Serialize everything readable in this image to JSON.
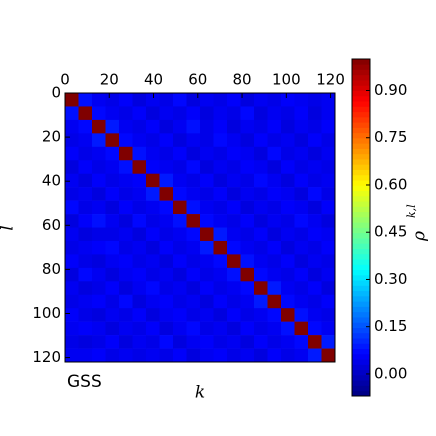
{
  "chart_data": {
    "type": "heatmap",
    "annotation": "GSS",
    "x_label": "k",
    "y_label": "l",
    "colorbar_label": {
      "base": "ρ",
      "superscript": "k,l"
    },
    "xlim": [
      0,
      122
    ],
    "ylim": [
      0,
      122
    ],
    "xticks": [
      0,
      20,
      40,
      60,
      80,
      100,
      120
    ],
    "yticks": [
      0,
      20,
      40,
      60,
      80,
      100,
      120
    ],
    "clim": [
      -0.07,
      1.0
    ],
    "colormap": "jet",
    "cticks": [
      {
        "value": 0.0,
        "label": "0.00"
      },
      {
        "value": 0.15,
        "label": "0.15"
      },
      {
        "value": 0.3,
        "label": "0.30"
      },
      {
        "value": 0.45,
        "label": "0.45"
      },
      {
        "value": 0.6,
        "label": "0.60"
      },
      {
        "value": 0.75,
        "label": "0.75"
      },
      {
        "value": 0.9,
        "label": "0.90"
      }
    ],
    "z": [
      [
        1.0,
        0.08,
        0.05,
        0.04,
        0.06,
        0.03,
        0.05,
        0.04,
        0.07,
        0.03,
        0.05,
        0.04,
        0.06,
        0.03,
        0.05,
        0.04,
        0.06,
        0.05,
        0.04,
        0.05
      ],
      [
        0.08,
        1.0,
        0.07,
        0.05,
        0.04,
        0.06,
        0.03,
        0.05,
        0.04,
        0.06,
        0.03,
        0.05,
        0.04,
        0.07,
        0.03,
        0.05,
        0.04,
        0.06,
        0.03,
        0.05
      ],
      [
        0.05,
        0.07,
        1.0,
        0.09,
        0.05,
        0.04,
        0.06,
        0.03,
        0.05,
        0.08,
        0.04,
        0.06,
        0.03,
        0.05,
        0.04,
        0.06,
        0.03,
        0.05,
        0.04,
        0.06
      ],
      [
        0.04,
        0.05,
        0.09,
        1.0,
        0.07,
        0.05,
        0.04,
        0.06,
        0.03,
        0.05,
        0.04,
        0.07,
        0.05,
        0.03,
        0.06,
        0.04,
        0.05,
        0.03,
        0.06,
        0.04
      ],
      [
        0.06,
        0.04,
        0.05,
        0.07,
        1.0,
        0.08,
        0.05,
        0.04,
        0.06,
        0.03,
        0.05,
        0.04,
        0.06,
        0.05,
        0.03,
        0.07,
        0.04,
        0.05,
        0.03,
        0.05
      ],
      [
        0.03,
        0.06,
        0.04,
        0.05,
        0.08,
        1.0,
        0.06,
        0.05,
        0.04,
        0.07,
        0.03,
        0.05,
        0.04,
        0.06,
        0.05,
        0.03,
        0.06,
        0.04,
        0.05,
        0.04
      ],
      [
        0.05,
        0.03,
        0.06,
        0.04,
        0.05,
        0.06,
        1.0,
        0.09,
        0.05,
        0.04,
        0.06,
        0.03,
        0.05,
        0.04,
        0.07,
        0.05,
        0.03,
        0.06,
        0.04,
        0.05
      ],
      [
        0.04,
        0.05,
        0.03,
        0.06,
        0.04,
        0.05,
        0.09,
        1.0,
        0.07,
        0.05,
        0.04,
        0.06,
        0.03,
        0.05,
        0.04,
        0.06,
        0.05,
        0.03,
        0.07,
        0.04
      ],
      [
        0.07,
        0.04,
        0.05,
        0.03,
        0.06,
        0.04,
        0.05,
        0.07,
        1.0,
        0.08,
        0.05,
        0.04,
        0.06,
        0.03,
        0.05,
        0.04,
        0.06,
        0.05,
        0.03,
        0.06
      ],
      [
        0.03,
        0.06,
        0.08,
        0.05,
        0.03,
        0.07,
        0.04,
        0.05,
        0.08,
        1.0,
        0.07,
        0.05,
        0.04,
        0.06,
        0.03,
        0.05,
        0.04,
        0.07,
        0.05,
        0.03
      ],
      [
        0.05,
        0.03,
        0.04,
        0.04,
        0.05,
        0.03,
        0.06,
        0.04,
        0.05,
        0.07,
        1.0,
        0.09,
        0.05,
        0.04,
        0.06,
        0.03,
        0.05,
        0.04,
        0.06,
        0.05
      ],
      [
        0.04,
        0.05,
        0.06,
        0.07,
        0.04,
        0.05,
        0.03,
        0.06,
        0.04,
        0.05,
        0.09,
        1.0,
        0.07,
        0.05,
        0.04,
        0.06,
        0.03,
        0.05,
        0.04,
        0.06
      ],
      [
        0.06,
        0.04,
        0.03,
        0.05,
        0.06,
        0.04,
        0.05,
        0.03,
        0.06,
        0.04,
        0.05,
        0.07,
        1.0,
        0.08,
        0.05,
        0.04,
        0.06,
        0.03,
        0.05,
        0.04
      ],
      [
        0.03,
        0.07,
        0.05,
        0.03,
        0.05,
        0.06,
        0.04,
        0.05,
        0.03,
        0.06,
        0.04,
        0.05,
        0.08,
        1.0,
        0.07,
        0.05,
        0.04,
        0.06,
        0.03,
        0.05
      ],
      [
        0.05,
        0.03,
        0.04,
        0.06,
        0.03,
        0.05,
        0.07,
        0.04,
        0.05,
        0.03,
        0.06,
        0.04,
        0.05,
        0.07,
        1.0,
        0.09,
        0.05,
        0.04,
        0.06,
        0.03
      ],
      [
        0.04,
        0.05,
        0.06,
        0.04,
        0.07,
        0.03,
        0.05,
        0.06,
        0.04,
        0.05,
        0.03,
        0.06,
        0.04,
        0.05,
        0.09,
        1.0,
        0.07,
        0.05,
        0.04,
        0.06
      ],
      [
        0.06,
        0.04,
        0.03,
        0.05,
        0.04,
        0.06,
        0.03,
        0.05,
        0.06,
        0.04,
        0.05,
        0.03,
        0.06,
        0.04,
        0.05,
        0.07,
        1.0,
        0.08,
        0.05,
        0.04
      ],
      [
        0.05,
        0.06,
        0.05,
        0.03,
        0.05,
        0.04,
        0.06,
        0.03,
        0.05,
        0.07,
        0.04,
        0.05,
        0.03,
        0.06,
        0.04,
        0.05,
        0.08,
        1.0,
        0.07,
        0.05
      ],
      [
        0.04,
        0.03,
        0.04,
        0.06,
        0.03,
        0.05,
        0.04,
        0.07,
        0.03,
        0.05,
        0.06,
        0.04,
        0.05,
        0.03,
        0.06,
        0.04,
        0.05,
        0.07,
        1.0,
        0.09
      ],
      [
        0.05,
        0.05,
        0.06,
        0.04,
        0.05,
        0.04,
        0.05,
        0.04,
        0.06,
        0.03,
        0.05,
        0.06,
        0.04,
        0.05,
        0.03,
        0.06,
        0.04,
        0.05,
        0.09,
        1.0
      ]
    ]
  }
}
